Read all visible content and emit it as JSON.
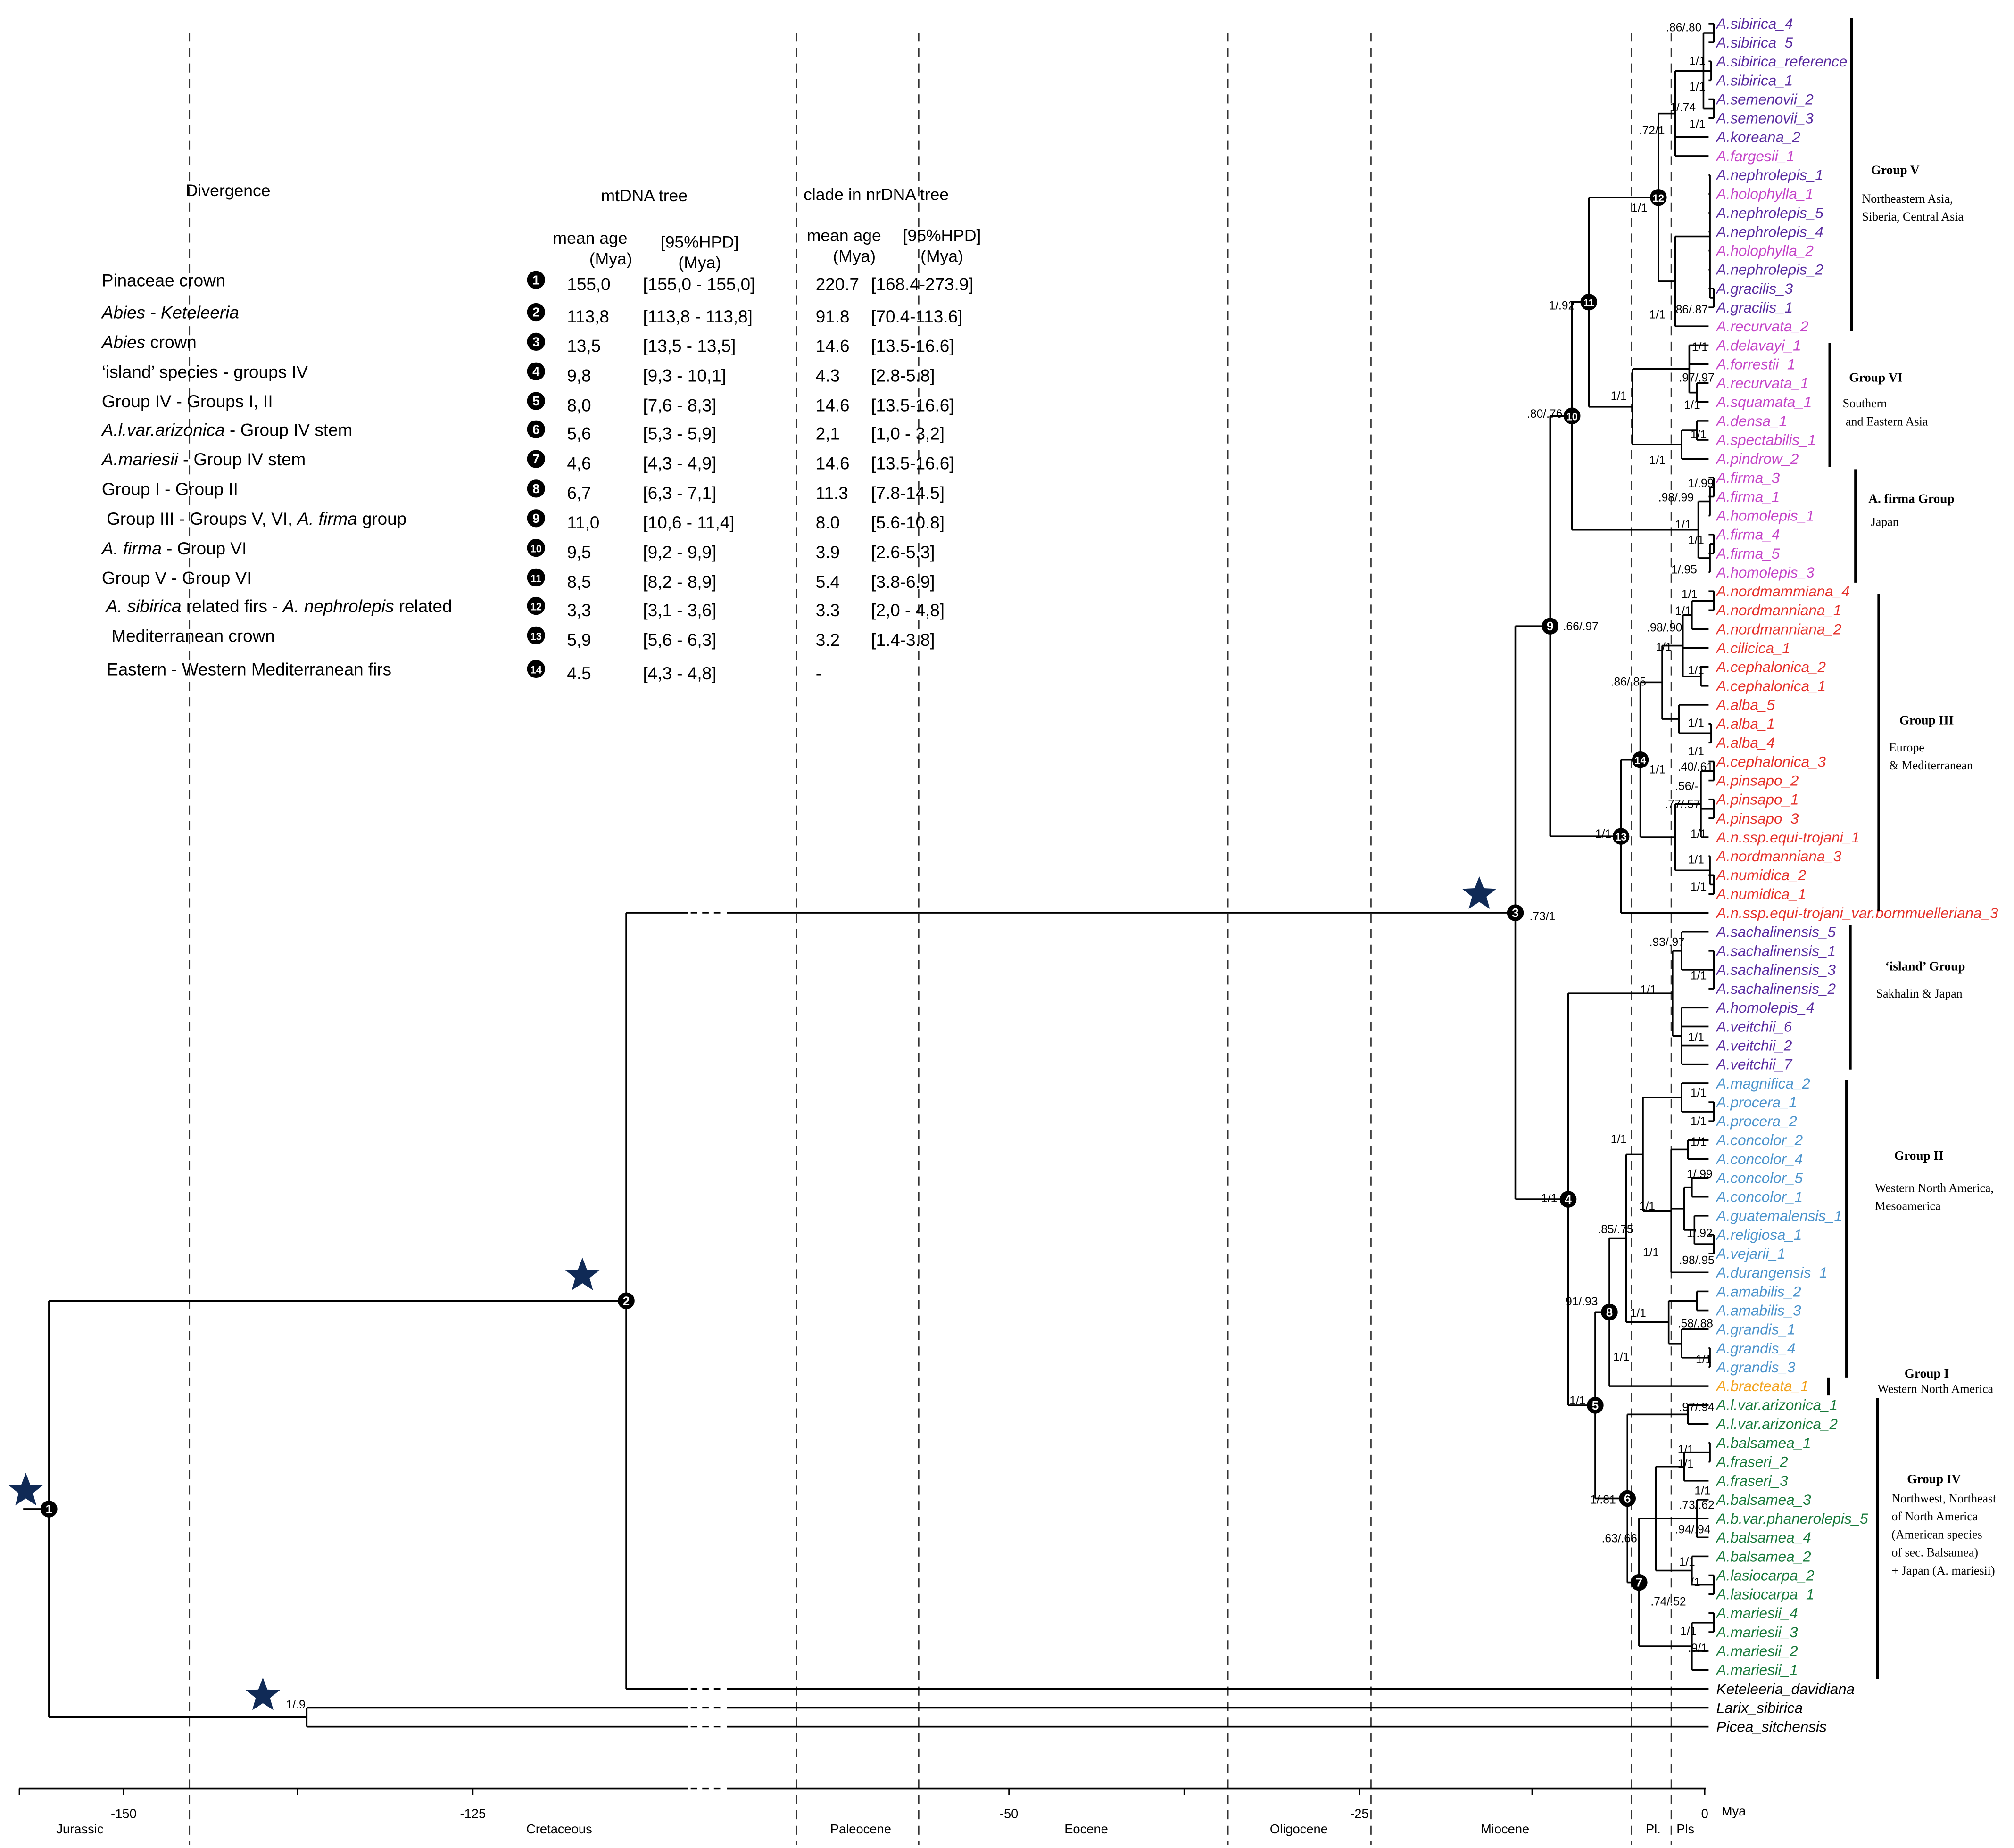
{
  "table": {
    "divergence_header": "Divergence",
    "mt_header": "mtDNA tree",
    "nr_header": "clade in nrDNA tree",
    "mean_age": "mean age",
    "hpd": "[95%HPD]",
    "mya": "(Mya)",
    "rows": [
      {
        "n": "1",
        "label": [
          [
            "Pinaceae crown",
            0
          ]
        ],
        "mt_mean": "155,0",
        "mt_hpd": "[155,0 - 155,0]",
        "nr_mean": "220.7",
        "nr_hpd": "[168.4-273.9]"
      },
      {
        "n": "2",
        "label": [
          [
            "Abies - Keteleeria",
            1
          ]
        ],
        "mt_mean": "113,8",
        "mt_hpd": "[113,8 - 113,8]",
        "nr_mean": "91.8",
        "nr_hpd": "[70.4-113.6]"
      },
      {
        "n": "3",
        "label": [
          [
            "Abies",
            1
          ],
          [
            " crown",
            0
          ]
        ],
        "mt_mean": "13,5",
        "mt_hpd": "[13,5 - 13,5]",
        "nr_mean": "14.6",
        "nr_hpd": "[13.5-16.6]"
      },
      {
        "n": "4",
        "label": [
          [
            "‘island’ species - groups IV",
            0
          ]
        ],
        "mt_mean": "9,8",
        "mt_hpd": "[9,3 - 10,1]",
        "nr_mean": "4.3",
        "nr_hpd": "[2.8-5.8]"
      },
      {
        "n": "5",
        "label": [
          [
            "Group IV - Groups I, II",
            0
          ]
        ],
        "mt_mean": "8,0",
        "mt_hpd": "[7,6 - 8,3]",
        "nr_mean": "14.6",
        "nr_hpd": "[13.5-16.6]"
      },
      {
        "n": "6",
        "label": [
          [
            "A.l.var.arizonica",
            1
          ],
          [
            " - Group IV stem",
            0
          ]
        ],
        "mt_mean": "5,6",
        "mt_hpd": "[5,3 - 5,9]",
        "nr_mean": "2,1",
        "nr_hpd": "[1,0 - 3,2]"
      },
      {
        "n": "7",
        "label": [
          [
            "A.mariesii",
            1
          ],
          [
            " - Group IV stem",
            0
          ]
        ],
        "mt_mean": "4,6",
        "mt_hpd": "[4,3 - 4,9]",
        "nr_mean": "14.6",
        "nr_hpd": "[13.5-16.6]"
      },
      {
        "n": "8",
        "label": [
          [
            "Group I - Group II",
            0
          ]
        ],
        "mt_mean": "6,7",
        "mt_hpd": "[6,3 - 7,1]",
        "nr_mean": "11.3",
        "nr_hpd": "[7.8-14.5]"
      },
      {
        "n": "9",
        "label": [
          [
            " Group III - Groups V, VI, ",
            0
          ],
          [
            "A. firma",
            1
          ],
          [
            " group",
            0
          ]
        ],
        "mt_mean": "11,0",
        "mt_hpd": "[10,6 - 11,4]",
        "nr_mean": "8.0",
        "nr_hpd": "[5.6-10.8]"
      },
      {
        "n": "10",
        "label": [
          [
            "A. firma",
            1
          ],
          [
            " - Group VI",
            0
          ]
        ],
        "mt_mean": "9,5",
        "mt_hpd": "[9,2 - 9,9]",
        "nr_mean": "3.9",
        "nr_hpd": "[2.6-5.3]"
      },
      {
        "n": "11",
        "label": [
          [
            "Group V - Group VI",
            0
          ]
        ],
        "mt_mean": "8,5",
        "mt_hpd": "[8,2 - 8,9]",
        "nr_mean": "5.4",
        "nr_hpd": "[3.8-6.9]"
      },
      {
        "n": "12",
        "label": [
          [
            " A. sibirica",
            1
          ],
          [
            " related firs - ",
            0
          ],
          [
            "A. nephrolepis",
            1
          ],
          [
            " related",
            0
          ]
        ],
        "mt_mean": "3,3",
        "mt_hpd": "[3,1 - 3,6]",
        "nr_mean": "3.3",
        "nr_hpd": "[2,0 - 4,8]"
      },
      {
        "n": "13",
        "label": [
          [
            "  Mediterranean crown",
            0
          ]
        ],
        "mt_mean": "5,9",
        "mt_hpd": "[5,6 - 6,3]",
        "nr_mean": "3.2",
        "nr_hpd": "[1.4-3.8]"
      },
      {
        "n": "14",
        "label": [
          [
            " Eastern - Western Mediterranean firs",
            0
          ]
        ],
        "mt_mean": "4.5",
        "mt_hpd": "[4,3 - 4,8]",
        "nr_mean": "-",
        "nr_hpd": ""
      }
    ]
  },
  "colors": {
    "purple": "#5a2ca0",
    "magenta": "#c444c8",
    "red": "#e5312b",
    "blue": "#4b93cc",
    "orange": "#f2a019",
    "green": "#17793a",
    "black": "#000000",
    "star": "#102a56"
  },
  "taxa": [
    [
      "A.sibirica_4",
      "purple"
    ],
    [
      "A.sibirica_5",
      "purple"
    ],
    [
      "A.sibirica_reference",
      "purple"
    ],
    [
      "A.sibirica_1",
      "purple"
    ],
    [
      "A.semenovii_2",
      "purple"
    ],
    [
      "A.semenovii_3",
      "purple"
    ],
    [
      "A.koreana_2",
      "purple"
    ],
    [
      "A.fargesii_1",
      "magenta"
    ],
    [
      "A.nephrolepis_1",
      "purple"
    ],
    [
      "A.holophylla_1",
      "magenta"
    ],
    [
      "A.nephrolepis_5",
      "purple"
    ],
    [
      "A.nephrolepis_4",
      "purple"
    ],
    [
      "A.holophylla_2",
      "magenta"
    ],
    [
      "A.nephrolepis_2",
      "purple"
    ],
    [
      "A.gracilis_3",
      "purple"
    ],
    [
      "A.gracilis_1",
      "purple"
    ],
    [
      "A.recurvata_2",
      "magenta"
    ],
    [
      "A.delavayi_1",
      "magenta"
    ],
    [
      "A.forrestii_1",
      "magenta"
    ],
    [
      "A.recurvata_1",
      "magenta"
    ],
    [
      "A.squamata_1",
      "magenta"
    ],
    [
      "A.densa_1",
      "magenta"
    ],
    [
      "A.spectabilis_1",
      "magenta"
    ],
    [
      "A.pindrow_2",
      "magenta"
    ],
    [
      "A.firma_3",
      "magenta"
    ],
    [
      "A.firma_1",
      "magenta"
    ],
    [
      "A.homolepis_1",
      "magenta"
    ],
    [
      "A.firma_4",
      "magenta"
    ],
    [
      "A.firma_5",
      "magenta"
    ],
    [
      "A.homolepis_3",
      "magenta"
    ],
    [
      "A.nordmammiana_4",
      "red"
    ],
    [
      "A.nordmanniana_1",
      "red"
    ],
    [
      "A.nordmanniana_2",
      "red"
    ],
    [
      "A.cilicica_1",
      "red"
    ],
    [
      "A.cephalonica_2",
      "red"
    ],
    [
      "A.cephalonica_1",
      "red"
    ],
    [
      "A.alba_5",
      "red"
    ],
    [
      "A.alba_1",
      "red"
    ],
    [
      "A.alba_4",
      "red"
    ],
    [
      "A.cephalonica_3",
      "red"
    ],
    [
      "A.pinsapo_2",
      "red"
    ],
    [
      "A.pinsapo_1",
      "red"
    ],
    [
      "A.pinsapo_3",
      "red"
    ],
    [
      "A.n.ssp.equi-trojani_1",
      "red"
    ],
    [
      "A.nordmanniana_3",
      "red"
    ],
    [
      "A.numidica_2",
      "red"
    ],
    [
      "A.numidica_1",
      "red"
    ],
    [
      "A.n.ssp.equi-trojani_var.bornmuelleriana_3",
      "red"
    ],
    [
      "A.sachalinensis_5",
      "purple"
    ],
    [
      "A.sachalinensis_1",
      "purple"
    ],
    [
      "A.sachalinensis_3",
      "purple"
    ],
    [
      "A.sachalinensis_2",
      "purple"
    ],
    [
      "A.homolepis_4",
      "purple"
    ],
    [
      "A.veitchii_6",
      "purple"
    ],
    [
      "A.veitchii_2",
      "purple"
    ],
    [
      "A.veitchii_7",
      "purple"
    ],
    [
      "A.magnifica_2",
      "blue"
    ],
    [
      "A.procera_1",
      "blue"
    ],
    [
      "A.procera_2",
      "blue"
    ],
    [
      "A.concolor_2",
      "blue"
    ],
    [
      "A.concolor_4",
      "blue"
    ],
    [
      "A.concolor_5",
      "blue"
    ],
    [
      "A.concolor_1",
      "blue"
    ],
    [
      "A.guatemalensis_1",
      "blue"
    ],
    [
      "A.religiosa_1",
      "blue"
    ],
    [
      "A.vejarii_1",
      "blue"
    ],
    [
      "A.durangensis_1",
      "blue"
    ],
    [
      "A.amabilis_2",
      "blue"
    ],
    [
      "A.amabilis_3",
      "blue"
    ],
    [
      "A.grandis_1",
      "blue"
    ],
    [
      "A.grandis_4",
      "blue"
    ],
    [
      "A.grandis_3",
      "blue"
    ],
    [
      "A.bracteata_1",
      "orange"
    ],
    [
      "A.l.var.arizonica_1",
      "green"
    ],
    [
      "A.l.var.arizonica_2",
      "green"
    ],
    [
      "A.balsamea_1",
      "green"
    ],
    [
      "A.fraseri_2",
      "green"
    ],
    [
      "A.fraseri_3",
      "green"
    ],
    [
      "A.balsamea_3",
      "green"
    ],
    [
      "A.b.var.phanerolepis_5",
      "green"
    ],
    [
      "A.balsamea_4",
      "green"
    ],
    [
      "A.balsamea_2",
      "green"
    ],
    [
      "A.lasiocarpa_2",
      "green"
    ],
    [
      "A.lasiocarpa_1",
      "green"
    ],
    [
      "A.mariesii_4",
      "green"
    ],
    [
      "A.mariesii_3",
      "green"
    ],
    [
      "A.mariesii_2",
      "green"
    ],
    [
      "A.mariesii_1",
      "green"
    ],
    [
      "Keteleeria_davidiana",
      "black"
    ],
    [
      "Larix_sibirica",
      "black"
    ],
    [
      "Picea_sitchensis",
      "black"
    ]
  ],
  "support_values": [
    ".86/.80",
    "1/1",
    "1/1",
    "1/.74",
    "1/1",
    ".72/1",
    "1/1",
    ".86/.87",
    "1/1",
    "1/.92",
    "1/1",
    ".97/.97",
    "1/1",
    "1/1",
    "1/1",
    "1/1",
    ".80/.76",
    "1/.99",
    ".98/.99",
    "1/1",
    "1/1",
    "1/.95",
    "1/1",
    "1/1",
    ".98/.90",
    "1/1",
    "1/1",
    ".86/.85",
    "1/1",
    "1/1",
    ".40/.61",
    ".56/-",
    ".77/.57",
    "1/1",
    "1/1",
    "1/1",
    "1/1",
    ".66/.97",
    ".73/1",
    "1/1",
    ".93/.97",
    "1/1",
    "1/1",
    "1/1",
    "1/1",
    "1/1",
    "1/1",
    "1/1",
    "1/.99",
    "1/1",
    "1/.92",
    "1/1",
    ".98/.95",
    ".85/.75",
    "91/.93",
    "1/1",
    ".58/.88",
    "1/1",
    "1/1",
    "1/1",
    "1/1",
    ".97/.94",
    "1/1",
    "1/1",
    "1/1",
    "1/.81",
    ".73/.62",
    ".94/.94",
    ".63/.66",
    "1/1",
    "/1",
    ".74/.52",
    "1/1",
    ".9/1",
    "1/.9"
  ],
  "groups": [
    {
      "name": "Group V",
      "region": [
        "Northeastern Asia,",
        "Siberia, Central Asia"
      ]
    },
    {
      "name": "Group VI",
      "region": [
        "Southern",
        " and Eastern Asia"
      ]
    },
    {
      "name": "A. firma Group",
      "region": [
        "Japan"
      ]
    },
    {
      "name": "Group III",
      "region": [
        "Europe",
        "& Mediterranean"
      ]
    },
    {
      "name": "‘island’ Group",
      "region": [
        "Sakhalin & Japan"
      ]
    },
    {
      "name": "Group II",
      "region": [
        "Western North America,",
        "Mesoamerica"
      ]
    },
    {
      "name": "Group I",
      "region": [
        "Western North America"
      ]
    },
    {
      "name": "Group IV",
      "region": [
        "Northwest, Northeast",
        "of North America",
        "(American species",
        "of sec. Balsamea)",
        "+ Japan (A. mariesii)"
      ]
    }
  ],
  "axis": {
    "ticks": [
      "-150",
      "-125",
      "-50",
      "-25",
      "0"
    ],
    "unit": "Mya",
    "periods": [
      "Jurassic",
      "Cretaceous",
      "Paleocene",
      "Eocene",
      "Oligocene",
      "Miocene",
      "Pl.",
      "Pls"
    ]
  }
}
